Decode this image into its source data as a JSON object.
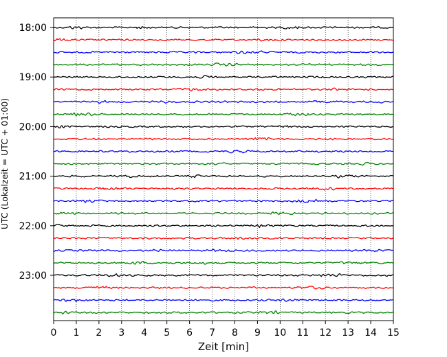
{
  "chart_data": {
    "type": "line",
    "subtype": "seismogram-helicorder",
    "xlabel": "Zeit  [min]",
    "ylabel": "UTC (Lokalzeit = UTC + 01:00)",
    "xlim": [
      0,
      15
    ],
    "x_ticks": [
      "0",
      "1",
      "2",
      "3",
      "4",
      "5",
      "6",
      "7",
      "8",
      "9",
      "10",
      "11",
      "12",
      "13",
      "14",
      "15"
    ],
    "y_ticks": [
      "18:00",
      "19:00",
      "20:00",
      "21:00",
      "22:00",
      "23:00"
    ],
    "traces_per_hour": 4,
    "trace_count": 24,
    "trace_colors": [
      "#000000",
      "#ff0000",
      "#0000ff",
      "#008000"
    ],
    "grid": "vertical dotted"
  }
}
